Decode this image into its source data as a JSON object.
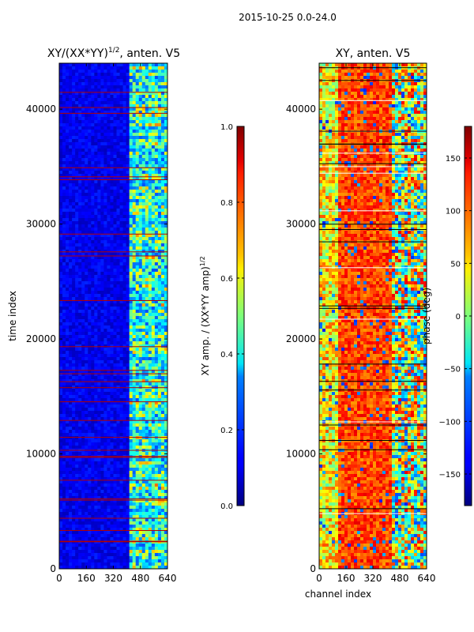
{
  "chart_data": {
    "type": "heatmap",
    "suptitle": "2015-10-25 0.0-24.0",
    "xlabel": "channel index",
    "ylabel": "time index",
    "x_ticks": [
      0,
      160,
      320,
      480,
      640
    ],
    "y_ticks": [
      0,
      10000,
      20000,
      30000,
      40000
    ],
    "xlim": [
      0,
      640
    ],
    "ylim": [
      0,
      44000
    ],
    "panels": [
      {
        "title": "XY/(XX*YY)",
        "title_power": "1/2",
        "title_suffix": ", anten. V5",
        "colorbar_label": "XY amp. / (XX*YY amp)",
        "colorbar_label_power": "1/2",
        "colorbar_ticks": [
          "0.0",
          "0.2",
          "0.4",
          "0.6",
          "0.8",
          "1.0"
        ],
        "colorbar_range": [
          0,
          1
        ],
        "colormap": "jet"
      },
      {
        "title": "XY, anten. V5",
        "colorbar_label": "phase (deg)",
        "colorbar_ticks": [
          "−150",
          "−100",
          "−50",
          "0",
          "50",
          "100",
          "150"
        ],
        "colorbar_range": [
          -180,
          180
        ],
        "colormap": "jet"
      }
    ]
  }
}
